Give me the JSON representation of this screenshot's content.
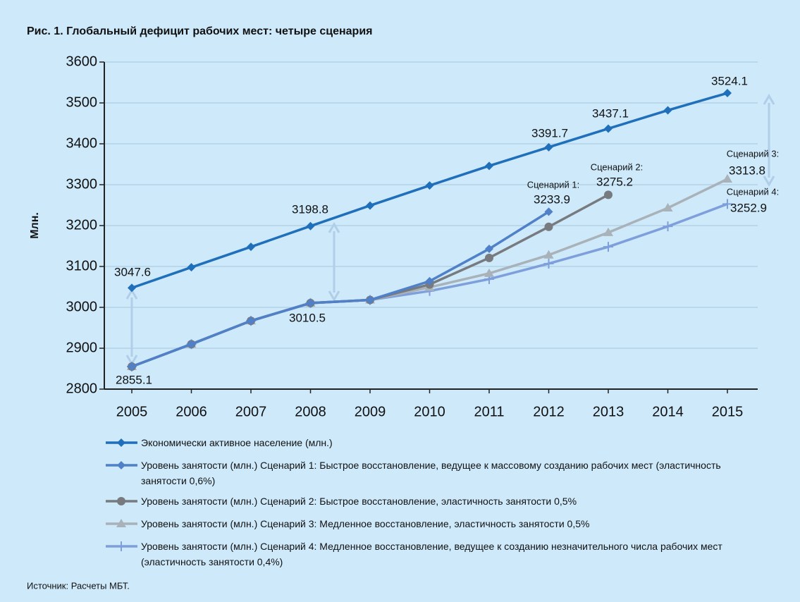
{
  "chart_data": {
    "type": "line",
    "title": "Рис. 1.   Глобальный дефицит рабочих мест: четыре сценария",
    "y_label": "Млн.",
    "source": "Источник: Расчеты МБТ.",
    "categories": [
      "2005",
      "2006",
      "2007",
      "2008",
      "2009",
      "2010",
      "2011",
      "2012",
      "2013",
      "2014",
      "2015"
    ],
    "series": [
      {
        "name": "Экономически активное население (млн.)",
        "color": "#1f6fba",
        "marker": "diamond",
        "values": [
          3047.6,
          3098,
          3148,
          3198.8,
          3249,
          3298,
          3346,
          3391.7,
          3437.1,
          3482,
          3524.1
        ]
      },
      {
        "name": "Уровень занятости (млн.) Сценарий 1: Быстрое восстановление, ведущее к массовому созданию рабочих мест (эластичность занятости 0,6%)",
        "color": "#4f80c8",
        "marker": "diamond",
        "values": [
          2855.1,
          2910,
          2967,
          3010.5,
          3018,
          3064,
          3143,
          3233.9,
          null,
          null,
          null
        ]
      },
      {
        "name": "Уровень занятости (млн.) Сценарий 2: Быстрое восстановление, эластичность занятости 0,5%",
        "color": "#777a7e",
        "marker": "circle",
        "values": [
          2855.1,
          2910,
          2967,
          3010.5,
          3018,
          3056,
          3121,
          3197,
          3275.2,
          null,
          null
        ]
      },
      {
        "name": "Уровень занятости (млн.) Сценарий 3: Медленное восстановление, эластичность занятости 0,5%",
        "color": "#a9b1b9",
        "marker": "triangle",
        "values": [
          2855.1,
          2910,
          2967,
          3010.5,
          3018,
          3049,
          3083,
          3128,
          3183,
          3243,
          3313.8
        ]
      },
      {
        "name": "Уровень занятости (млн.) Сценарий 4: Медленное восстановление, ведущее к созданию незначительного числа рабочих мест (эластичность занятости 0,4%)",
        "color": "#7f9fdc",
        "marker": "plus",
        "values": [
          2855.1,
          2910,
          2967,
          3010.5,
          3018,
          3040,
          3069,
          3107,
          3148,
          3198,
          3252.9
        ]
      }
    ],
    "annotations": [
      "Сценарий 1:",
      "Сценарий 2:",
      "Сценарий 3:",
      "Сценарий 4:"
    ],
    "ylim": [
      2800,
      3600
    ],
    "yticks": [
      2800,
      2900,
      3000,
      3100,
      3200,
      3300,
      3400,
      3500,
      3600
    ],
    "grid": true
  }
}
